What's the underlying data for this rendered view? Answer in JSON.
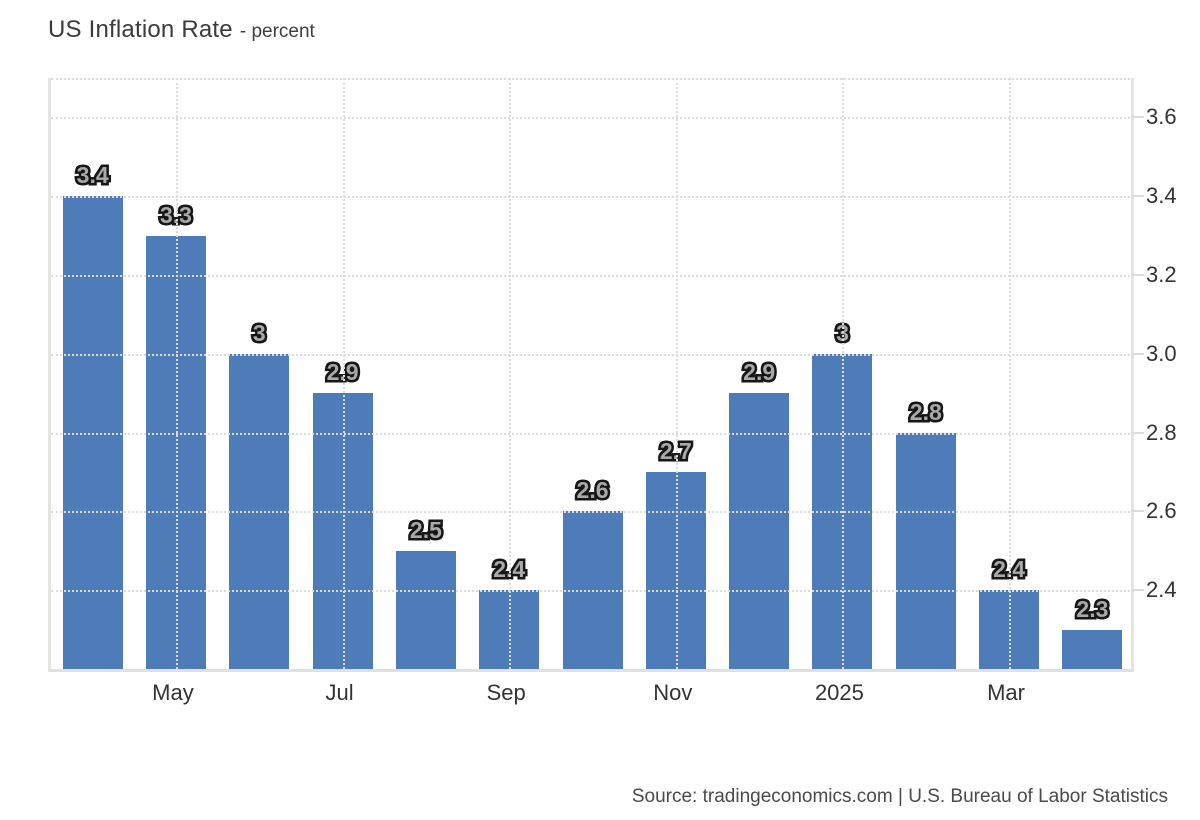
{
  "header": {
    "title": "US Inflation Rate",
    "subtitle": "- percent"
  },
  "footer": {
    "source": "Source: tradingeconomics.com | U.S. Bureau of Labor Statistics"
  },
  "colors": {
    "bar": "#4d7cb8",
    "gridline": "#dcdcdc",
    "axis_border": "#e4e4e4",
    "axis_text": "#333333",
    "title_text": "#3b3b3b",
    "data_label_fill": "#a9a9a9",
    "data_label_outline": "#161616",
    "source_text": "#4a4a4a",
    "background": "#ffffff"
  },
  "chart_data": {
    "type": "bar",
    "title": "US Inflation Rate",
    "subtitle": "- percent",
    "unit": "percent",
    "values": [
      3.4,
      3.3,
      3.0,
      2.9,
      2.5,
      2.4,
      2.6,
      2.7,
      2.9,
      3.0,
      2.8,
      2.4,
      2.3
    ],
    "bar_labels": [
      "3.4",
      "3.3",
      "3",
      "2.9",
      "2.5",
      "2.4",
      "2.6",
      "2.7",
      "2.9",
      "3",
      "2.8",
      "2.4",
      "2.3"
    ],
    "x_ticks": [
      {
        "label": "May",
        "slot": 1
      },
      {
        "label": "Jul",
        "slot": 3
      },
      {
        "label": "Sep",
        "slot": 5
      },
      {
        "label": "Nov",
        "slot": 7
      },
      {
        "label": "2025",
        "slot": 9
      },
      {
        "label": "Mar",
        "slot": 11
      }
    ],
    "y_ticks": [
      {
        "label": "2.4",
        "value": 2.4
      },
      {
        "label": "2.6",
        "value": 2.6
      },
      {
        "label": "2.8",
        "value": 2.8
      },
      {
        "label": "3.0",
        "value": 3.0
      },
      {
        "label": "3.2",
        "value": 3.2
      },
      {
        "label": "3.4",
        "value": 3.4
      },
      {
        "label": "3.6",
        "value": 3.6
      }
    ],
    "ylim": [
      2.2,
      3.7
    ],
    "y_axis_side": "right",
    "grid": "dotted",
    "legend": "none",
    "bar_color": "#4d7cb8"
  }
}
